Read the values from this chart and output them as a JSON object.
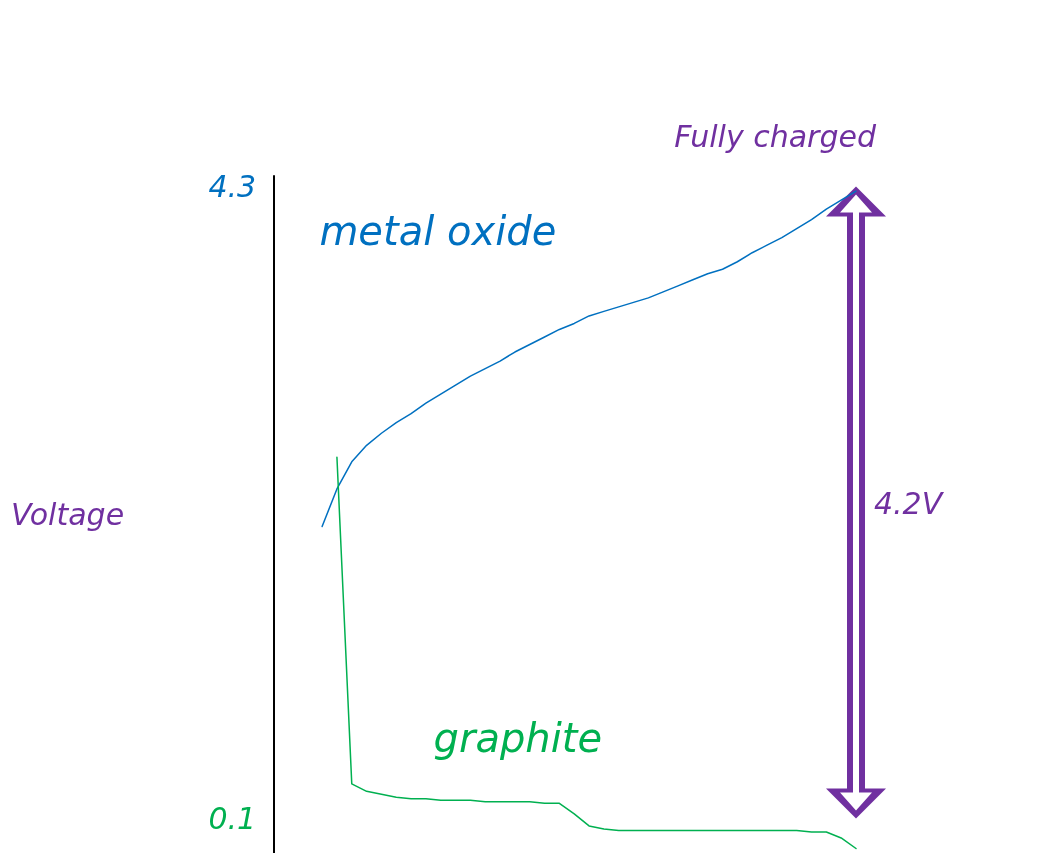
{
  "chart_data": {
    "type": "line",
    "ylabel": "Voltage",
    "categories": [
      null,
      null,
      null,
      null,
      null,
      null,
      null,
      null,
      null,
      null,
      null,
      null,
      null,
      null,
      null,
      null,
      null,
      null,
      null,
      null,
      null,
      null,
      null,
      null,
      null,
      null,
      null,
      null,
      null,
      null,
      null,
      null,
      null,
      null,
      null,
      null,
      null
    ],
    "ylim": [
      -0.13,
      4.37
    ],
    "yticks": [
      0.1,
      4.3
    ],
    "tick_labels": "y",
    "grid": false,
    "legend": false,
    "marker": "none",
    "line_style": "solid",
    "series": [
      {
        "name": "metal oxide",
        "color": "#0070c0",
        "values": [
          2.04,
          2.29,
          2.47,
          2.58,
          2.66,
          2.73,
          2.79,
          2.86,
          2.92,
          2.98,
          3.04,
          3.09,
          3.14,
          3.2,
          3.25,
          3.3,
          3.35,
          3.39,
          3.44,
          3.47,
          3.5,
          3.53,
          3.56,
          3.6,
          3.64,
          3.68,
          3.72,
          3.75,
          3.8,
          3.86,
          3.91,
          3.96,
          4.02,
          4.08,
          4.15,
          4.21,
          4.27
        ]
      },
      {
        "name": "graphite",
        "color": "#00b050",
        "values": [
          null,
          2.5,
          0.33,
          0.28,
          0.26,
          0.24,
          0.23,
          0.23,
          0.22,
          0.22,
          0.22,
          0.21,
          0.21,
          0.21,
          0.21,
          0.2,
          0.2,
          0.13,
          0.05,
          0.03,
          0.02,
          0.02,
          0.02,
          0.02,
          0.02,
          0.02,
          0.02,
          0.02,
          0.02,
          0.02,
          0.02,
          0.02,
          0.02,
          0.01,
          0.01,
          -0.03,
          -0.1
        ]
      }
    ],
    "annotations": [
      "Fully charged",
      "4.2V"
    ]
  }
}
